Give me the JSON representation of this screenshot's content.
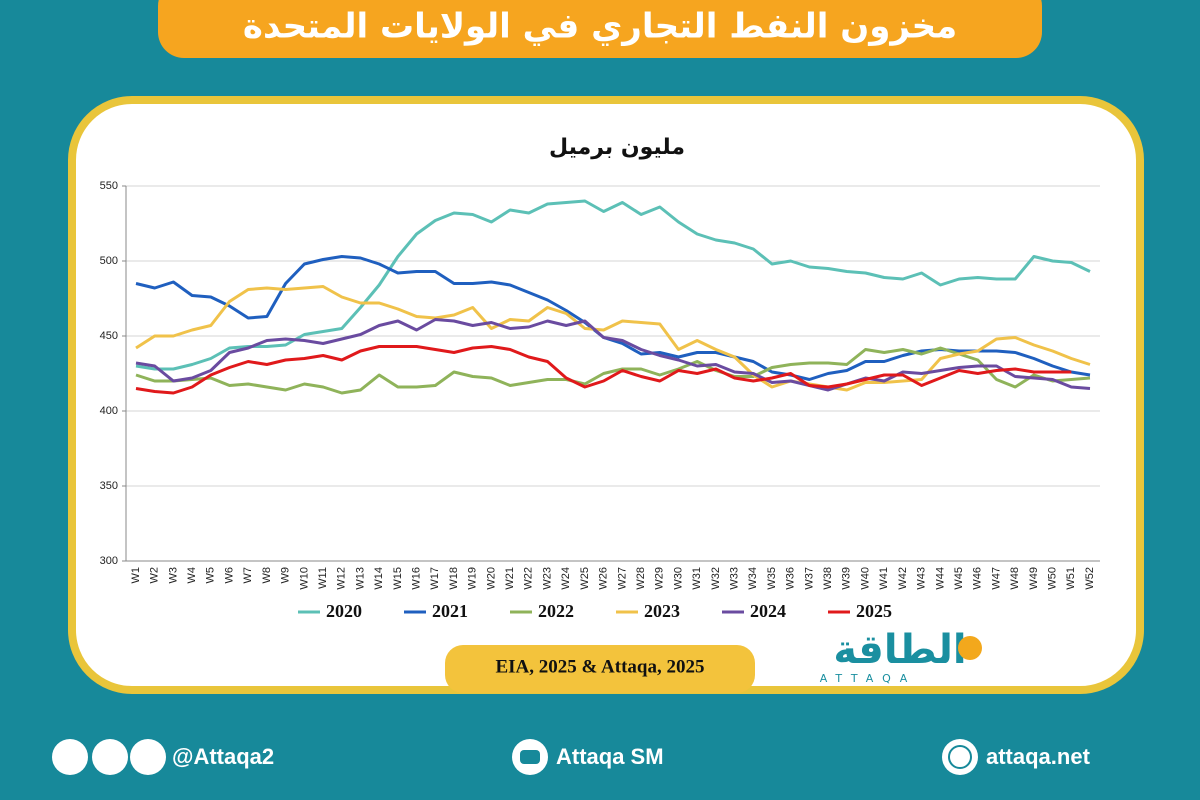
{
  "chart_data": {
    "type": "line",
    "title": "مخزون النفط التجاري في الولايات المتحدة",
    "subtitle": "مليون برميل",
    "source": "EIA, 2025 & Attaqa, 2025",
    "categories": [
      "W1",
      "W2",
      "W3",
      "W4",
      "W5",
      "W6",
      "W7",
      "W8",
      "W9",
      "W10",
      "W11",
      "W12",
      "W13",
      "W14",
      "W15",
      "W16",
      "W17",
      "W18",
      "W19",
      "W20",
      "W21",
      "W22",
      "W23",
      "W24",
      "W25",
      "W26",
      "W27",
      "W28",
      "W29",
      "W30",
      "W31",
      "W32",
      "W33",
      "W34",
      "W35",
      "W36",
      "W37",
      "W38",
      "W39",
      "W40",
      "W41",
      "W42",
      "W43",
      "W44",
      "W45",
      "W46",
      "W47",
      "W48",
      "W49",
      "W50",
      "W51",
      "W52"
    ],
    "ylim": [
      300,
      550
    ],
    "yticks": [
      300,
      350,
      400,
      450,
      500,
      550
    ],
    "grid": true,
    "series": [
      {
        "name": "2020",
        "color": "#5cc0b6",
        "values": [
          430,
          428,
          428,
          431,
          435,
          442,
          443,
          443,
          444,
          451,
          453,
          455,
          469,
          484,
          503,
          518,
          527,
          532,
          531,
          526,
          534,
          532,
          538,
          539,
          540,
          533,
          539,
          531,
          536,
          526,
          518,
          514,
          512,
          508,
          498,
          500,
          496,
          495,
          493,
          492,
          489,
          488,
          492,
          484,
          488,
          489,
          488,
          488,
          503,
          500,
          499,
          493
        ]
      },
      {
        "name": "2021",
        "color": "#1f5fbf",
        "values": [
          485,
          482,
          486,
          477,
          476,
          470,
          462,
          463,
          485,
          498,
          501,
          503,
          502,
          498,
          492,
          493,
          493,
          485,
          485,
          486,
          484,
          479,
          474,
          467,
          459,
          449,
          445,
          438,
          439,
          436,
          439,
          439,
          436,
          433,
          426,
          424,
          421,
          425,
          427,
          433,
          433,
          437,
          440,
          441,
          440,
          440,
          440,
          439,
          435,
          430,
          426,
          424
        ]
      },
      {
        "name": "2022",
        "color": "#8fb35a",
        "values": [
          424,
          420,
          420,
          421,
          422,
          417,
          418,
          416,
          414,
          418,
          416,
          412,
          414,
          424,
          416,
          416,
          417,
          426,
          423,
          422,
          417,
          419,
          421,
          421,
          418,
          425,
          428,
          428,
          424,
          428,
          433,
          427,
          423,
          423,
          429,
          431,
          432,
          432,
          431,
          441,
          439,
          441,
          438,
          442,
          438,
          434,
          421,
          416,
          424,
          420,
          421,
          422
        ]
      },
      {
        "name": "2023",
        "color": "#f0c24a",
        "values": [
          442,
          450,
          450,
          454,
          457,
          473,
          481,
          482,
          481,
          482,
          483,
          476,
          472,
          472,
          468,
          463,
          462,
          464,
          469,
          455,
          461,
          460,
          469,
          465,
          455,
          454,
          460,
          459,
          458,
          441,
          447,
          441,
          436,
          424,
          416,
          420,
          418,
          416,
          414,
          419,
          419,
          420,
          421,
          435,
          438,
          440,
          448,
          449,
          444,
          440,
          435,
          431
        ]
      },
      {
        "name": "2024",
        "color": "#6a4ba0",
        "values": [
          432,
          430,
          420,
          422,
          427,
          439,
          442,
          447,
          448,
          447,
          445,
          448,
          451,
          457,
          460,
          454,
          461,
          460,
          457,
          459,
          455,
          456,
          460,
          457,
          460,
          449,
          447,
          441,
          437,
          434,
          430,
          431,
          426,
          425,
          419,
          420,
          417,
          414,
          418,
          422,
          420,
          426,
          425,
          427,
          429,
          430,
          430,
          423,
          422,
          421,
          416,
          415
        ]
      },
      {
        "name": "2025",
        "color": "#e0191b",
        "values": [
          415,
          413,
          412,
          416,
          424,
          429,
          433,
          431,
          434,
          435,
          437,
          434,
          440,
          443,
          443,
          443,
          441,
          439,
          442,
          443,
          441,
          436,
          433,
          422,
          416,
          420,
          427,
          423,
          420,
          427,
          425,
          428,
          422,
          420,
          422,
          425,
          417,
          416,
          418,
          421,
          424,
          424,
          417,
          422,
          427,
          425,
          427,
          428,
          426,
          426,
          426,
          null
        ]
      }
    ]
  },
  "logo": {
    "name": "الطاقة",
    "latin": "ATTAQA"
  },
  "footer": {
    "social": "@Attaqa2",
    "youtube": "Attaqa SM",
    "website": "attaqa.net"
  }
}
